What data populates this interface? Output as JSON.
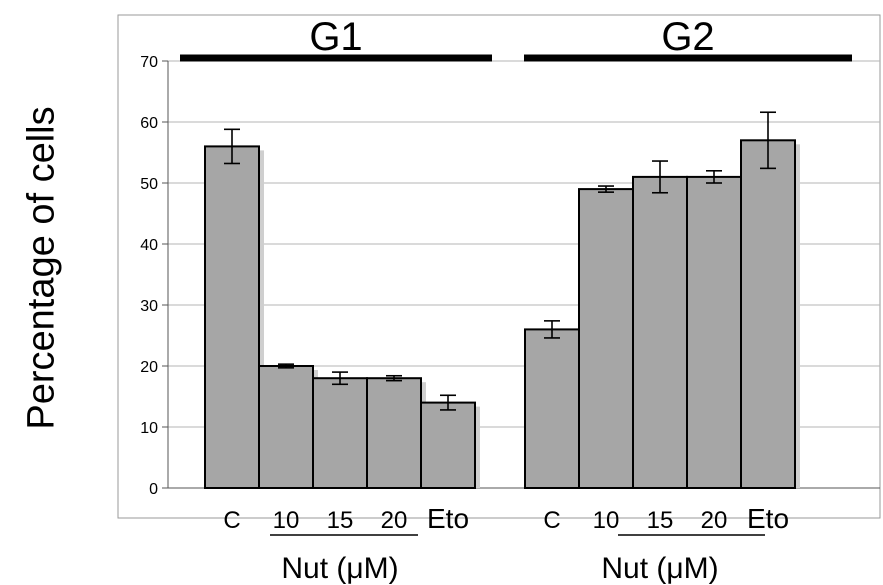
{
  "chart_data": {
    "type": "bar",
    "ylabel": "Percentage of cells",
    "ylim": [
      0,
      70
    ],
    "yticks": [
      0,
      10,
      20,
      30,
      40,
      50,
      60,
      70
    ],
    "grid": true,
    "bar_color": "#a6a6a6",
    "groups": [
      {
        "name": "G1",
        "categories": [
          "C",
          "10",
          "15",
          "20",
          "Eto"
        ],
        "values": [
          56,
          20,
          18,
          18,
          14
        ],
        "errors": [
          2.8,
          0.3,
          1.0,
          0.4,
          1.2
        ],
        "sub_label": "Nut (μM)"
      },
      {
        "name": "G2",
        "categories": [
          "C",
          "10",
          "15",
          "20",
          "Eto"
        ],
        "values": [
          26,
          49,
          51,
          51,
          57
        ],
        "errors": [
          1.4,
          0.5,
          2.6,
          1.0,
          4.6
        ],
        "sub_label": "Nut (μM)"
      }
    ]
  }
}
